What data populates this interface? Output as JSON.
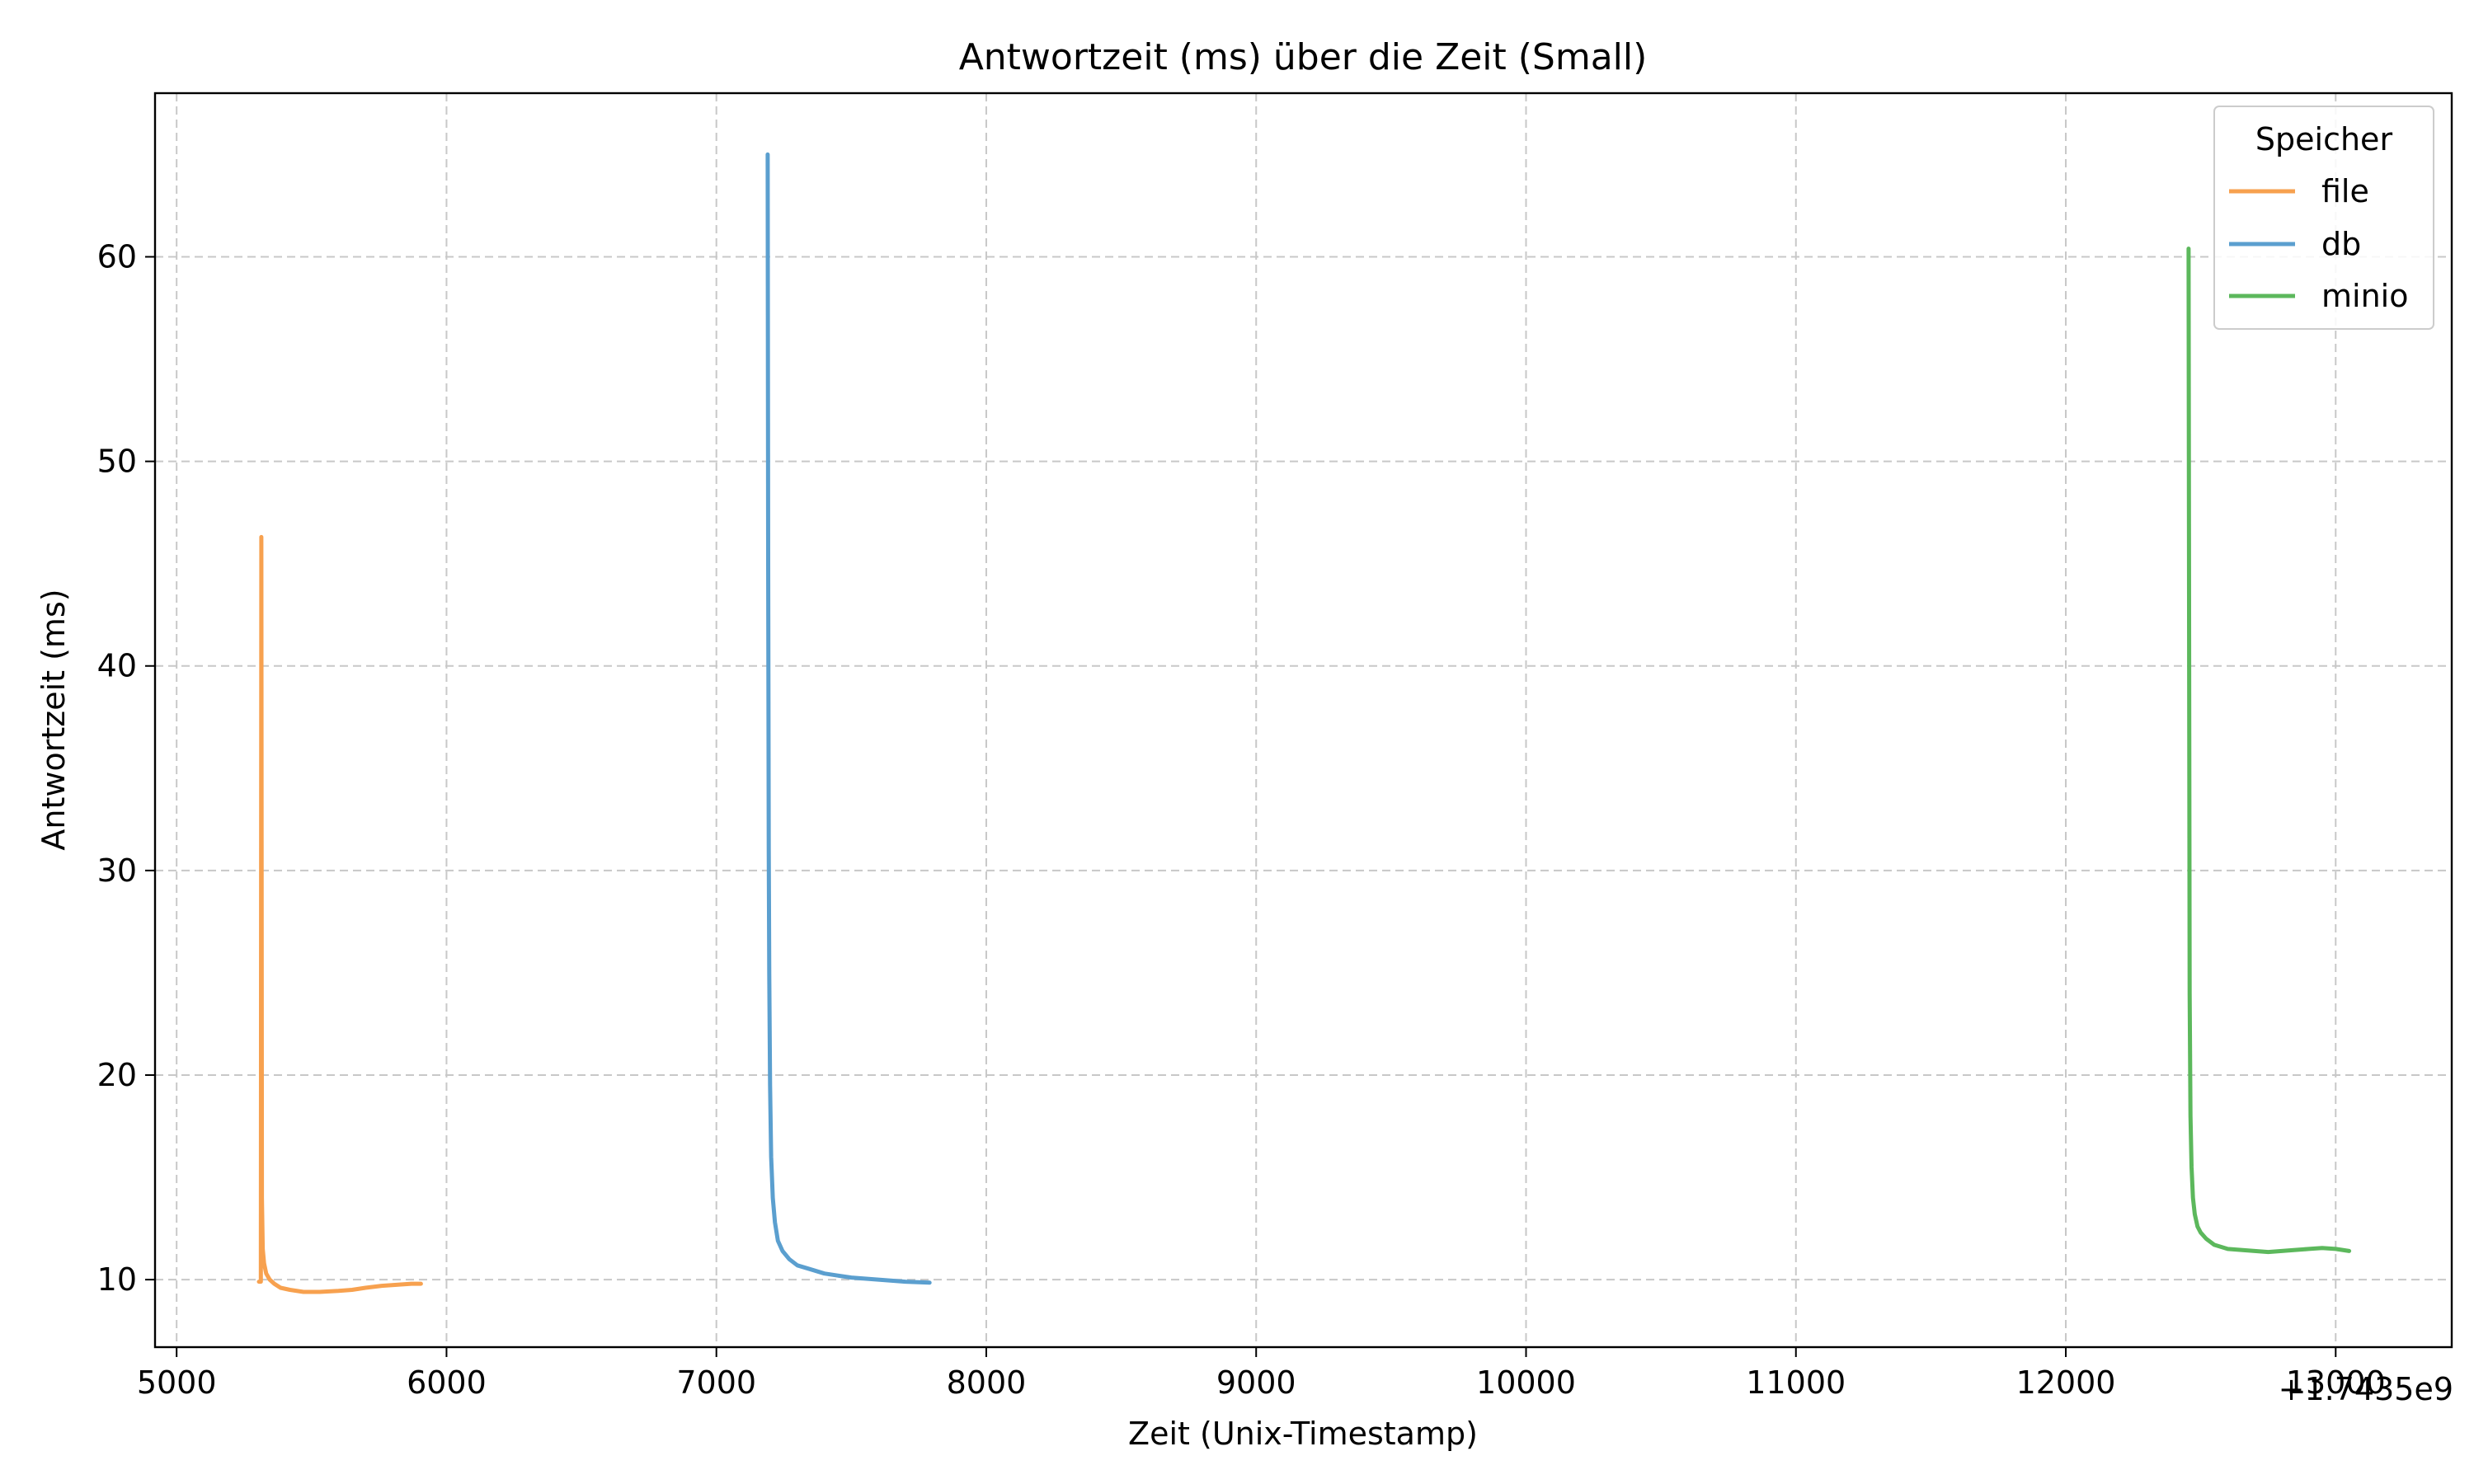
{
  "chart_data": {
    "type": "line",
    "title": "Antwortzeit (ms) über die Zeit (Small)",
    "xlabel": "Zeit (Unix-Timestamp)",
    "ylabel": "Antwortzeit (ms)",
    "x_offset_label": "+1.7435e9",
    "xlim": [
      4920,
      13430
    ],
    "ylim": [
      6.7,
      68.0
    ],
    "xticks": [
      5000,
      6000,
      7000,
      8000,
      9000,
      10000,
      11000,
      12000,
      13000
    ],
    "xtick_labels": [
      "5000",
      "6000",
      "7000",
      "8000",
      "9000",
      "10000",
      "11000",
      "12000",
      "13000"
    ],
    "yticks": [
      10,
      20,
      30,
      40,
      50,
      60
    ],
    "ytick_labels": [
      "10",
      "20",
      "30",
      "40",
      "50",
      "60"
    ],
    "grid": true,
    "grid_style": "dashed",
    "legend": {
      "title": "Speicher",
      "placement": "top-right"
    },
    "series": [
      {
        "name": "file",
        "color": "#f7a14f",
        "x": [
          5305,
          5312,
          5314,
          5316,
          5319,
          5324,
          5332,
          5345,
          5362,
          5385,
          5420,
          5470,
          5530,
          5600,
          5650,
          5700,
          5760,
          5820,
          5870,
          5905
        ],
        "y": [
          9.9,
          9.9,
          46.3,
          14.0,
          11.5,
          10.8,
          10.3,
          10.0,
          9.8,
          9.6,
          9.5,
          9.4,
          9.4,
          9.45,
          9.5,
          9.6,
          9.7,
          9.75,
          9.8,
          9.8
        ]
      },
      {
        "name": "db",
        "color": "#5b9fcf",
        "x": [
          7190,
          7192,
          7194,
          7196,
          7199,
          7203,
          7209,
          7217,
          7228,
          7245,
          7270,
          7300,
          7350,
          7400,
          7450,
          7500,
          7600,
          7700,
          7790
        ],
        "y": [
          65.0,
          45.0,
          31.0,
          25.0,
          19.5,
          16.0,
          14.0,
          12.8,
          11.9,
          11.4,
          11.0,
          10.7,
          10.5,
          10.3,
          10.2,
          10.1,
          10.0,
          9.9,
          9.85
        ]
      },
      {
        "name": "minio",
        "color": "#5cb85c",
        "x": [
          12455,
          12457,
          12459,
          12462,
          12466,
          12471,
          12478,
          12488,
          12500,
          12520,
          12550,
          12600,
          12650,
          12700,
          12750,
          12800,
          12850,
          12900,
          12950,
          13000,
          13050
        ],
        "y": [
          60.4,
          40.0,
          24.0,
          18.0,
          15.5,
          14.0,
          13.2,
          12.6,
          12.3,
          12.0,
          11.7,
          11.5,
          11.45,
          11.4,
          11.35,
          11.4,
          11.45,
          11.5,
          11.55,
          11.5,
          11.4
        ]
      }
    ]
  }
}
